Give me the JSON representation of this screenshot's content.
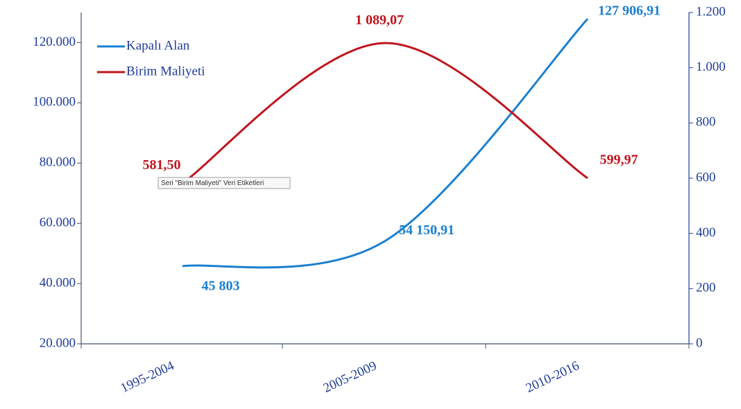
{
  "chart_data": {
    "type": "line",
    "categories": [
      "1995-2004",
      "2005-2009",
      "2010-2016"
    ],
    "series": [
      {
        "name": "Kapalı Alan",
        "color": "#1a7fcf",
        "values": [
          45803,
          54150.91,
          127906.91
        ],
        "value_labels": [
          "45 803",
          "54 150,91",
          "127 906,91"
        ]
      },
      {
        "name": "Birim Maliyeti",
        "color": "#c0141c",
        "axis": "y2",
        "values": [
          581.5,
          1089.07,
          599.97
        ],
        "value_labels": [
          "581,50",
          "1 089,07",
          "599,97"
        ]
      }
    ],
    "ylim": [
      20000,
      130000
    ],
    "yticks": [
      {
        "value": 20000,
        "label": "20.000"
      },
      {
        "value": 40000,
        "label": "40.000"
      },
      {
        "value": 60000,
        "label": "60.000"
      },
      {
        "value": 80000,
        "label": "80.000"
      },
      {
        "value": 100000,
        "label": "100.000"
      },
      {
        "value": 120000,
        "label": "120.000"
      }
    ],
    "y2lim": [
      0,
      1200
    ],
    "y2ticks": [
      0,
      200,
      400,
      600,
      800,
      {
        "value": 1000,
        "label": "1.000"
      },
      {
        "value": 1200,
        "label": "1.200"
      }
    ],
    "smooth": true,
    "legend": "top-left",
    "tooltip": "Seri \"Birim Maliyeti\" Veri Etiketleri"
  }
}
